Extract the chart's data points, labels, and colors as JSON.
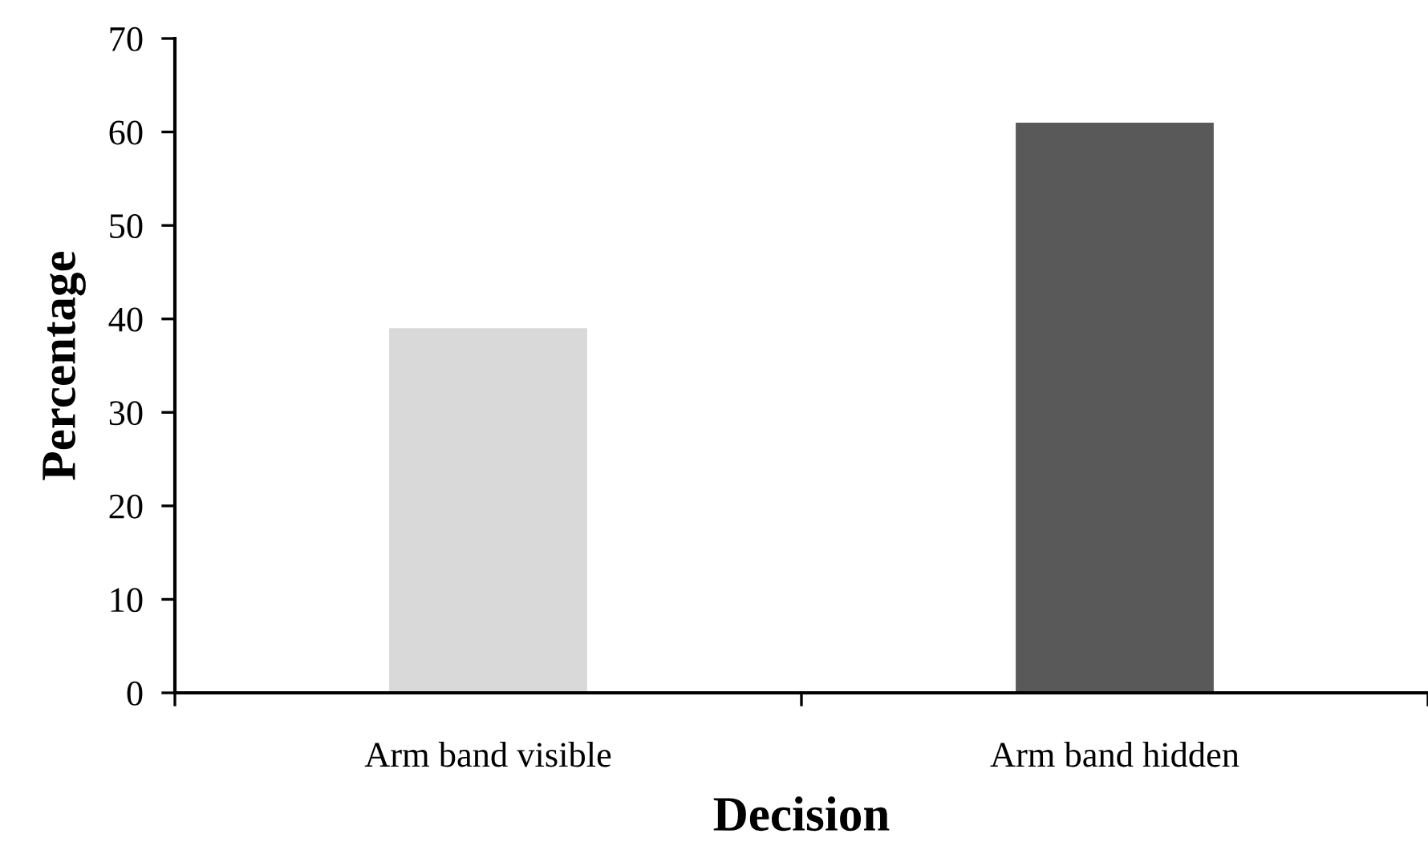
{
  "chart_data": {
    "type": "bar",
    "xlabel": "Decision",
    "ylabel": "Percentage",
    "categories": [
      "Arm band visible",
      "Arm band hidden"
    ],
    "values": [
      39,
      61
    ],
    "colors": [
      "#d9d9d9",
      "#595959"
    ],
    "ylim": [
      0,
      70
    ],
    "yticks": [
      0,
      10,
      20,
      30,
      40,
      50,
      60,
      70
    ],
    "grid": false,
    "legend": false
  }
}
